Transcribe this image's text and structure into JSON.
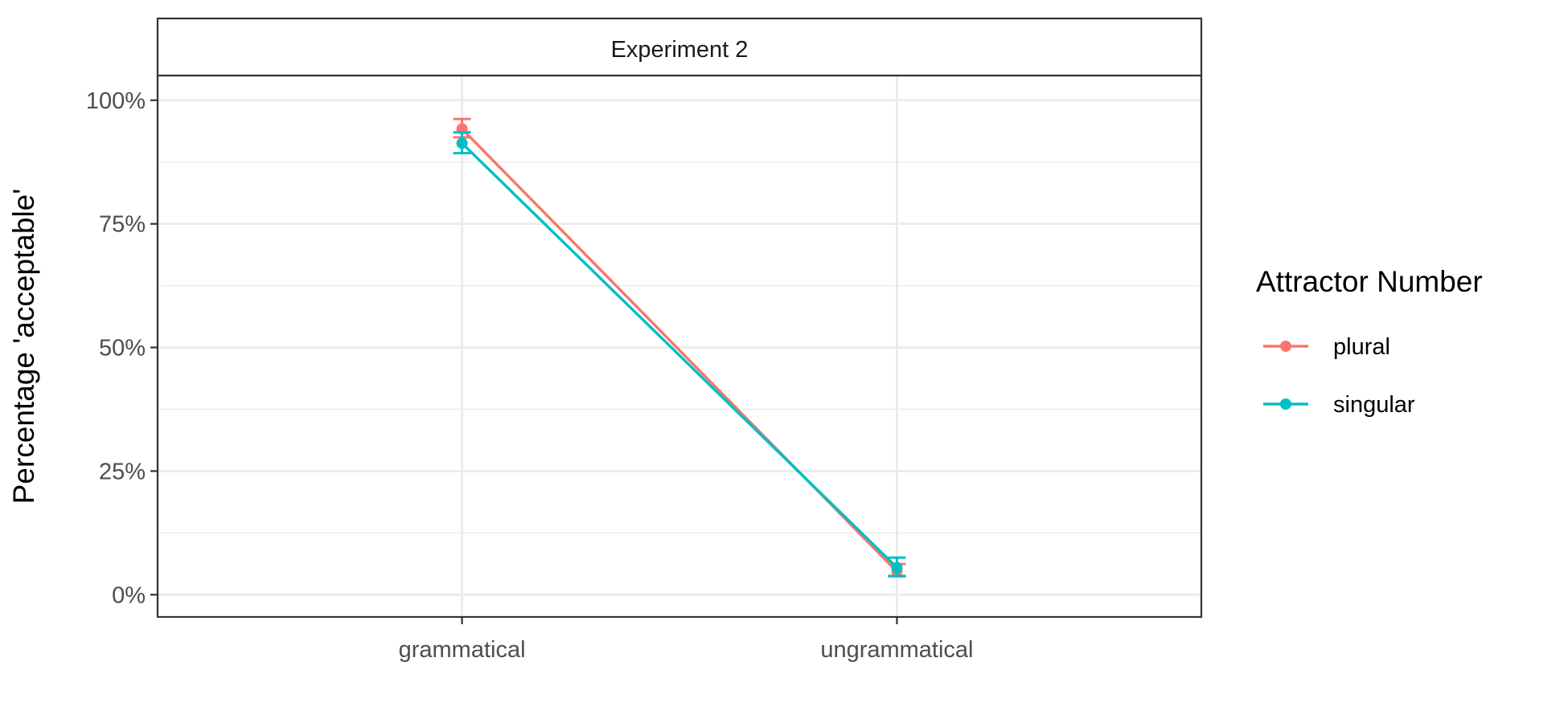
{
  "chart_data": {
    "type": "line",
    "panel_title": "Experiment 2",
    "categories": [
      "grammatical",
      "ungrammatical"
    ],
    "ylabel": "Percentage 'acceptable'",
    "xlabel": "",
    "ylim": [
      -0.045,
      1.05
    ],
    "y_ticks": [
      {
        "value": 0,
        "label": "0%"
      },
      {
        "value": 0.25,
        "label": "25%"
      },
      {
        "value": 0.5,
        "label": "50%"
      },
      {
        "value": 0.75,
        "label": "75%"
      },
      {
        "value": 1.0,
        "label": "100%"
      }
    ],
    "y_minor_gridlines": [
      0.125,
      0.375,
      0.625,
      0.875
    ],
    "grid": true,
    "legend": {
      "title": "Attractor Number",
      "placement": "right"
    },
    "series": [
      {
        "name": "plural",
        "color": "#F8766D",
        "values": [
          0.942,
          0.047
        ],
        "error_low": [
          0.925,
          0.037
        ],
        "error_high": [
          0.962,
          0.062
        ]
      },
      {
        "name": "singular",
        "color": "#00BFC4",
        "values": [
          0.913,
          0.055
        ],
        "error_low": [
          0.893,
          0.038
        ],
        "error_high": [
          0.935,
          0.075
        ]
      }
    ]
  }
}
